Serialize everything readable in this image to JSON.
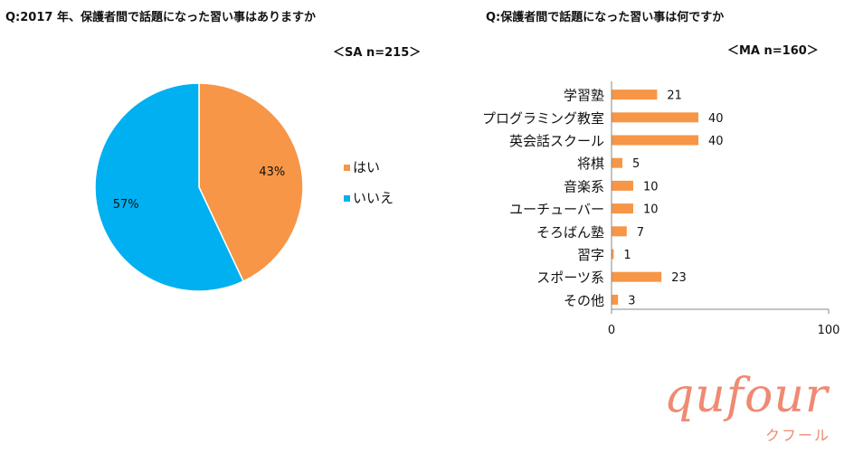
{
  "colors": {
    "orange": "#f79646",
    "blue": "#00b0f0",
    "axis": "#888888",
    "logo": "#ef8a73"
  },
  "chart_data": [
    {
      "type": "pie",
      "title": "Q:2017 年、保護者間で話題になった習い事はありますか",
      "note": "＜SA n=215＞",
      "slices": [
        {
          "label": "はい",
          "value": 43,
          "display": "43%"
        },
        {
          "label": "いいえ",
          "value": 57,
          "display": "57%"
        }
      ],
      "legend": [
        "はい",
        "いいえ"
      ],
      "legend_placement": "right"
    },
    {
      "type": "bar",
      "orientation": "horizontal",
      "title": "Q:保護者間で話題になった習い事は何ですか",
      "note": "＜MA n=160＞",
      "categories": [
        "学習塾",
        "プログラミング教室",
        "英会話スクール",
        "将棋",
        "音楽系",
        "ユーチューバー",
        "そろばん塾",
        "習字",
        "スポーツ系",
        "その他"
      ],
      "values": [
        21,
        40,
        40,
        5,
        10,
        10,
        7,
        1,
        23,
        3
      ],
      "xlim": [
        0,
        100
      ],
      "x_ticks": [
        "0",
        "100"
      ],
      "grid": false
    }
  ],
  "logo": {
    "name": "qufour",
    "sub": "クフール"
  }
}
